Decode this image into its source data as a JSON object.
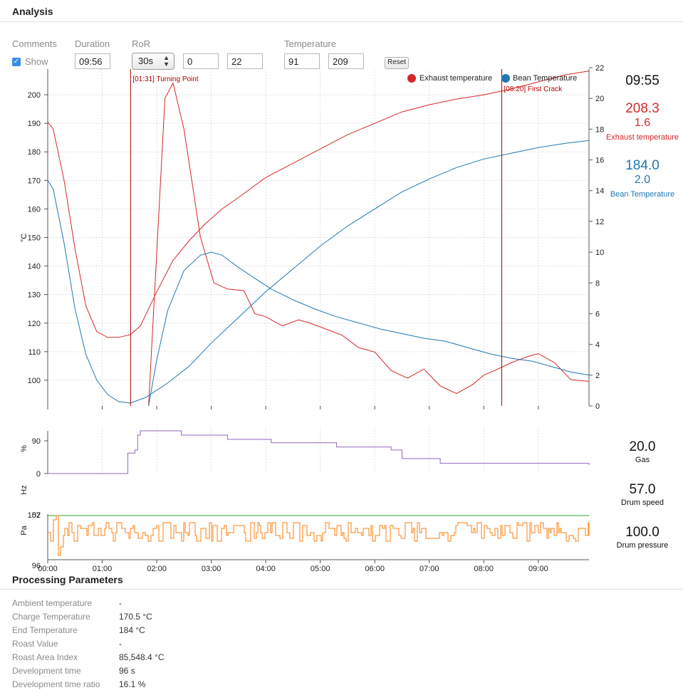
{
  "header": {
    "title": "Analysis"
  },
  "controls": {
    "comments_label": "Comments",
    "show_label": "Show",
    "show_checked": true,
    "duration_label": "Duration",
    "duration_value": "09:56",
    "ror_label": "RoR",
    "ror_select": "30s",
    "ror_min": "0",
    "ror_max": "22",
    "temperature_label": "Temperature",
    "temp_min": "91",
    "temp_max": "209",
    "reset_label": "Reset"
  },
  "readouts": {
    "time": "09:55",
    "exhaust_value": "208.3",
    "exhaust_ror": "1.6",
    "exhaust_label": "Exhaust temperature",
    "bean_value": "184.0",
    "bean_ror": "2.0",
    "bean_label": "Bean Temperature",
    "gas_value": "20.0",
    "gas_label": "Gas",
    "drum_speed_value": "57.0",
    "drum_speed_label": "Drum speed",
    "drum_pressure_value": "100.0",
    "drum_pressure_label": "Drum pressure"
  },
  "colors": {
    "exhaust": "#d62728",
    "bean": "#1f77b4",
    "gas": "#9467bd",
    "drum_speed": "#2ca02c",
    "drum_pressure": "#ff7f0e",
    "event_line": "#b30000"
  },
  "chart_data": [
    {
      "type": "line",
      "x_unit": "minutes",
      "xlim": [
        0,
        9.93
      ],
      "x_ticks": [
        "00:00",
        "01:00",
        "02:00",
        "03:00",
        "04:00",
        "05:00",
        "06:00",
        "07:00",
        "08:00",
        "09:00"
      ],
      "ylabel": "°C",
      "ylim": [
        91,
        209
      ],
      "y_ticks": [
        100,
        110,
        120,
        130,
        140,
        150,
        160,
        170,
        180,
        190,
        200
      ],
      "y2lim": [
        0,
        22
      ],
      "y2_ticks": [
        0,
        2,
        4,
        6,
        8,
        10,
        12,
        14,
        16,
        18,
        20,
        22
      ],
      "grid": true,
      "legend": "top-right",
      "legend_entries": [
        "Exhaust temperature",
        "Bean Temperature"
      ],
      "events": [
        {
          "x": 1.52,
          "label": "[01:31] Turning Point"
        },
        {
          "x": 8.33,
          "label": "[08:20] First Crack"
        }
      ],
      "series": [
        {
          "name": "Exhaust temperature",
          "axis": "temperature",
          "x": [
            0,
            0.1,
            0.3,
            0.5,
            0.7,
            0.9,
            1.1,
            1.3,
            1.52,
            1.7,
            2.0,
            2.3,
            2.6,
            2.9,
            3.2,
            3.5,
            4.0,
            4.5,
            5.0,
            5.5,
            6.0,
            6.5,
            7.0,
            7.5,
            8.0,
            8.5,
            9.0,
            9.5,
            9.93
          ],
          "y": [
            190.5,
            188,
            170,
            146,
            126,
            117,
            115,
            115,
            116,
            119,
            131,
            142,
            149,
            155,
            160,
            164,
            171,
            176,
            181,
            186,
            190,
            194,
            196.5,
            198.5,
            200,
            202,
            204.5,
            207,
            208.3
          ]
        },
        {
          "name": "Bean Temperature",
          "axis": "temperature",
          "x": [
            0,
            0.1,
            0.3,
            0.5,
            0.7,
            0.9,
            1.1,
            1.3,
            1.52,
            1.8,
            2.2,
            2.6,
            3.0,
            3.5,
            4.0,
            4.5,
            5.0,
            5.5,
            6.0,
            6.5,
            7.0,
            7.5,
            8.0,
            8.5,
            9.0,
            9.5,
            9.93
          ],
          "y": [
            170,
            167,
            148,
            125,
            109,
            100,
            95,
            92.5,
            92,
            94,
            99,
            105,
            113,
            122,
            131,
            139,
            147,
            154,
            160,
            166,
            170.5,
            174.5,
            177.5,
            179.5,
            181.5,
            183,
            184
          ]
        },
        {
          "name": "Exhaust temperature RoR",
          "axis": "ror",
          "x": [
            1.85,
            2.0,
            2.15,
            2.3,
            2.5,
            2.8,
            3.05,
            3.3,
            3.6,
            3.8,
            4.0,
            4.3,
            4.6,
            4.8,
            5.1,
            5.4,
            5.7,
            6.0,
            6.3,
            6.6,
            6.9,
            7.2,
            7.5,
            7.8,
            8.0,
            8.2,
            8.5,
            8.8,
            9.0,
            9.3,
            9.6,
            9.93
          ],
          "y": [
            0,
            10,
            20,
            21,
            18,
            11,
            8,
            7.6,
            7.5,
            6,
            5.8,
            5.2,
            5.6,
            5.4,
            5,
            4.6,
            3.8,
            3.5,
            2.3,
            1.8,
            2.4,
            1.3,
            0.8,
            1.4,
            2,
            2.3,
            2.8,
            3.2,
            3.4,
            2.8,
            1.7,
            1.6
          ]
        },
        {
          "name": "Bean Temperature RoR",
          "axis": "ror",
          "x": [
            1.85,
            2.0,
            2.2,
            2.5,
            2.8,
            3.0,
            3.2,
            3.5,
            3.8,
            4.1,
            4.5,
            4.9,
            5.3,
            5.7,
            6.1,
            6.5,
            6.9,
            7.3,
            7.7,
            8.1,
            8.5,
            8.9,
            9.3,
            9.6,
            9.93
          ],
          "y": [
            0,
            3,
            6.2,
            8.8,
            9.8,
            10,
            9.8,
            9,
            8.3,
            7.6,
            6.9,
            6.3,
            5.8,
            5.4,
            5,
            4.7,
            4.4,
            4.2,
            3.8,
            3.4,
            3.1,
            2.9,
            2.5,
            2.2,
            2
          ]
        }
      ]
    },
    {
      "type": "line",
      "ylabel": "%",
      "ylim": [
        0,
        100
      ],
      "y_ticks": [
        0,
        90
      ],
      "series": [
        {
          "name": "Gas",
          "x": [
            0,
            1.45,
            1.47,
            1.6,
            1.65,
            1.7,
            2.45,
            3.3,
            4.1,
            5.3,
            6.3,
            6.5,
            7.2,
            9.93
          ],
          "y": [
            0,
            0,
            48,
            55,
            90,
            100,
            90,
            80,
            72,
            62,
            55,
            35,
            24,
            20
          ]
        }
      ]
    },
    {
      "type": "line",
      "ylabel": "Hz",
      "y_ticks": [
        57
      ],
      "series": [
        {
          "name": "Drum speed",
          "x": [
            0,
            9.93
          ],
          "y": [
            57,
            57
          ]
        }
      ]
    },
    {
      "type": "line",
      "ylabel": "Pa",
      "ylim": [
        96,
        102
      ],
      "y_ticks": [
        96,
        102
      ],
      "x_ticks": [
        "00:00",
        "01:00",
        "02:00",
        "03:00",
        "04:00",
        "05:00",
        "06:00",
        "07:00",
        "08:00",
        "09:00"
      ],
      "series": [
        {
          "name": "Drum pressure",
          "baseline": 100.0,
          "last": 100.0
        }
      ]
    }
  ],
  "parameters": {
    "title": "Processing Parameters",
    "rows": [
      {
        "label": "Ambient temperature",
        "value": "-"
      },
      {
        "label": "Charge Temperature",
        "value": "170.5 °C"
      },
      {
        "label": "End Temperature",
        "value": "184 °C"
      },
      {
        "label": "Roast Value",
        "value": "-"
      },
      {
        "label": "Roast Area Index",
        "value": "85,548.4 °C"
      },
      {
        "label": "Development time",
        "value": "96 s"
      },
      {
        "label": "Development time ratio",
        "value": "16.1 %"
      }
    ]
  }
}
